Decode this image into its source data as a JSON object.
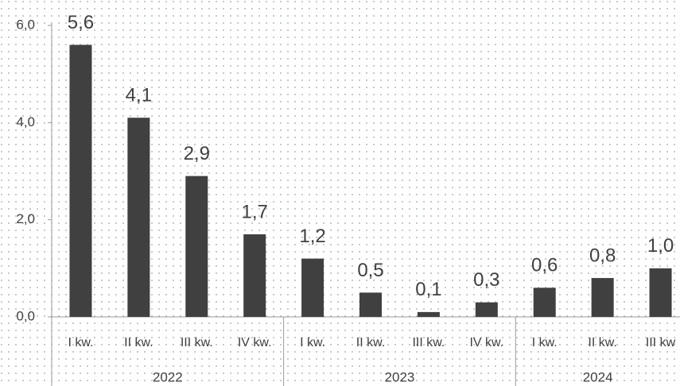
{
  "chart_data": {
    "type": "bar",
    "categories": [
      "I kw.",
      "II kw.",
      "III kw.",
      "IV kw.",
      "I kw.",
      "II kw.",
      "III kw.",
      "IV kw.",
      "I kw.",
      "II kw.",
      "III kw"
    ],
    "groups": [
      {
        "label": "2022",
        "count": 4
      },
      {
        "label": "2023",
        "count": 4
      },
      {
        "label": "2024",
        "count": 3
      }
    ],
    "values": [
      5.6,
      4.1,
      2.9,
      1.7,
      1.2,
      0.5,
      0.1,
      0.3,
      0.6,
      0.8,
      1.0
    ],
    "value_labels": [
      "5,6",
      "4,1",
      "2,9",
      "1,7",
      "1,2",
      "0,5",
      "0,1",
      "0,3",
      "0,6",
      "0,8",
      "1,0"
    ],
    "color": "#404040",
    "ylim": [
      0,
      6
    ],
    "yticks": [
      {
        "value": 0,
        "label": "0,0"
      },
      {
        "value": 2,
        "label": "2,0"
      },
      {
        "value": 4,
        "label": "4,0"
      },
      {
        "value": 6,
        "label": "6,0"
      }
    ],
    "grid": false
  }
}
